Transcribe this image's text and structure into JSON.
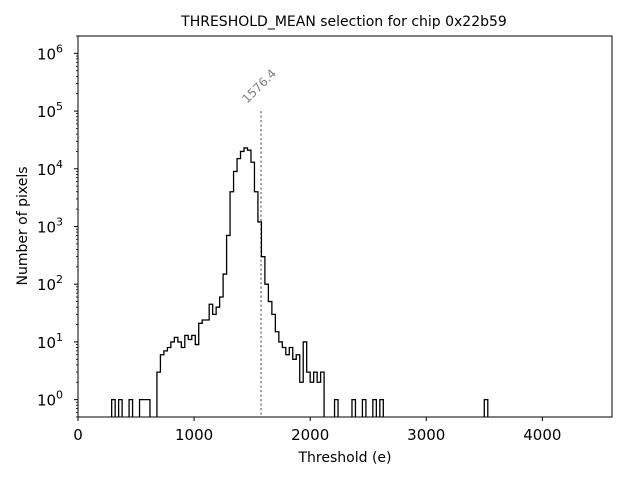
{
  "chart_data": {
    "type": "histogram",
    "title": "THRESHOLD_MEAN selection for chip 0x22b59",
    "xlabel": "Threshold (e)",
    "ylabel": "Number of pixels",
    "xlim": [
      0,
      4600
    ],
    "ylim": [
      0.5,
      2000000
    ],
    "yscale": "log",
    "x_ticks": [
      {
        "value": 0,
        "label": "0"
      },
      {
        "value": 1000,
        "label": "1000"
      },
      {
        "value": 2000,
        "label": "2000"
      },
      {
        "value": 3000,
        "label": "3000"
      },
      {
        "value": 4000,
        "label": "4000"
      }
    ],
    "y_ticks": [
      {
        "value": 1,
        "base": "10",
        "exp": "0"
      },
      {
        "value": 10,
        "base": "10",
        "exp": "1"
      },
      {
        "value": 100,
        "base": "10",
        "exp": "2"
      },
      {
        "value": 1000,
        "base": "10",
        "exp": "3"
      },
      {
        "value": 10000,
        "base": "10",
        "exp": "4"
      },
      {
        "value": 100000,
        "base": "10",
        "exp": "5"
      },
      {
        "value": 1000000,
        "base": "10",
        "exp": "6"
      }
    ],
    "bin_width": 30,
    "bin_start": 290,
    "counts": [
      1,
      0,
      1,
      0,
      0,
      1,
      0,
      0,
      1,
      1,
      1,
      0,
      0,
      3,
      6,
      7,
      8,
      10,
      12,
      10,
      8,
      13,
      11,
      13,
      9,
      21,
      24,
      24,
      45,
      30,
      40,
      60,
      150,
      700,
      4000,
      9000,
      15000,
      20000,
      23000,
      21000,
      13000,
      4000,
      1200,
      300,
      100,
      50,
      30,
      15,
      10,
      8,
      6,
      8,
      5,
      6,
      2,
      10,
      3,
      2,
      3,
      2,
      3,
      0,
      0,
      0,
      1,
      0,
      0,
      0,
      0,
      1,
      0,
      0,
      1,
      0,
      0,
      1,
      0,
      1,
      0,
      0,
      0,
      0,
      0,
      0,
      0,
      0,
      0,
      0,
      0,
      0,
      0,
      0,
      0,
      0,
      0,
      0,
      0,
      0,
      0,
      0,
      0,
      0,
      0,
      0,
      0,
      0,
      0,
      1
    ],
    "mean": {
      "value": 1576.4,
      "label": "1576.4",
      "line_top": 100000
    },
    "colors": {
      "line": "#000000",
      "mean_line": "#808080",
      "mean_label": "#808080"
    }
  }
}
